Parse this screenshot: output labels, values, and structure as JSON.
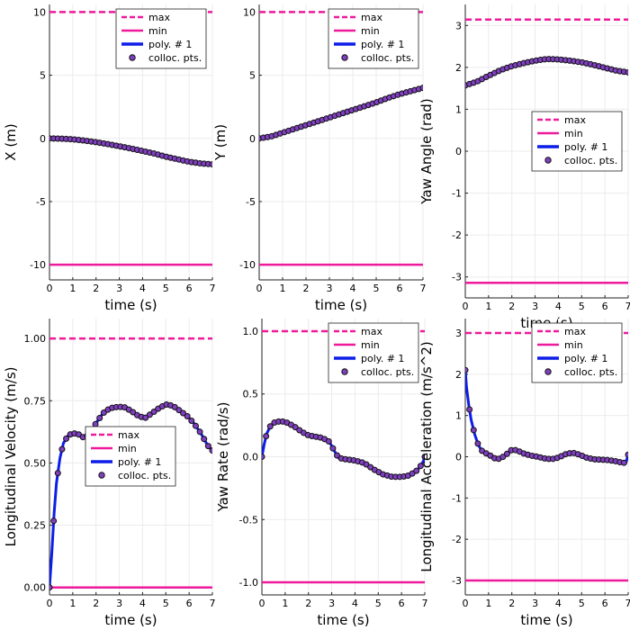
{
  "legend": {
    "max_label": "max",
    "min_label": "min",
    "poly_label": "poly. # 1",
    "pts_label": "colloc. pts."
  },
  "colors": {
    "bound": "#ee1a9b",
    "poly": "#0d1ee8",
    "pts_fill": "#7f3fbf",
    "pts_edge": "#111111",
    "grid": "#ebebeb"
  },
  "chart_data": [
    {
      "type": "line",
      "xlabel": "time (s)",
      "ylabel": "X (m)",
      "xlim": [
        0,
        7
      ],
      "ylim": [
        -11.2,
        10.6
      ],
      "xticks": [
        0,
        1,
        2,
        3,
        4,
        5,
        6,
        7
      ],
      "yticks": [
        10,
        5,
        0,
        -5,
        -10
      ],
      "ytick_labels": [
        "10",
        "5",
        "0",
        "-5",
        "-10"
      ],
      "max": 10,
      "min": -10,
      "legend_loc": "top-right",
      "x": [
        0,
        0.5,
        1,
        1.5,
        2,
        2.5,
        3,
        3.5,
        4,
        4.5,
        5,
        5.5,
        6,
        6.5,
        7
      ],
      "y": [
        0,
        -0.02,
        -0.07,
        -0.17,
        -0.3,
        -0.45,
        -0.62,
        -0.8,
        -1.0,
        -1.2,
        -1.45,
        -1.65,
        -1.85,
        -1.98,
        -2.05
      ]
    },
    {
      "type": "line",
      "xlabel": "time (s)",
      "ylabel": "Y (m)",
      "xlim": [
        0,
        7
      ],
      "ylim": [
        -11.2,
        10.6
      ],
      "xticks": [
        0,
        1,
        2,
        3,
        4,
        5,
        6,
        7
      ],
      "yticks": [
        10,
        5,
        0,
        -5,
        -10
      ],
      "ytick_labels": [
        "10",
        "5",
        "0",
        "-5",
        "-10"
      ],
      "max": 10,
      "min": -10,
      "legend_loc": "top-right",
      "x": [
        0,
        0.5,
        1,
        1.5,
        2,
        2.5,
        3,
        3.5,
        4,
        4.5,
        5,
        5.5,
        6,
        6.5,
        7
      ],
      "y": [
        0,
        0.15,
        0.45,
        0.75,
        1.05,
        1.35,
        1.65,
        1.95,
        2.25,
        2.55,
        2.85,
        3.2,
        3.5,
        3.75,
        4.0
      ]
    },
    {
      "type": "line",
      "xlabel": "time (s)",
      "ylabel": "Yaw Angle (rad)",
      "xlim": [
        0,
        7
      ],
      "ylim": [
        -3.5,
        3.5
      ],
      "xticks": [
        0,
        1,
        2,
        3,
        4,
        5,
        6,
        7
      ],
      "yticks": [
        3,
        2,
        1,
        0,
        -1,
        -2,
        -3
      ],
      "ytick_labels": [
        "3",
        "2",
        "1",
        "0",
        "-1",
        "-2",
        "-3"
      ],
      "max": 3.14,
      "min": -3.14,
      "legend_loc": "center-right",
      "x": [
        0,
        0.5,
        1,
        1.5,
        2,
        2.5,
        3,
        3.5,
        4,
        4.5,
        5,
        5.5,
        6,
        6.5,
        7
      ],
      "y": [
        1.57,
        1.66,
        1.8,
        1.93,
        2.03,
        2.1,
        2.16,
        2.2,
        2.19,
        2.16,
        2.12,
        2.06,
        1.99,
        1.92,
        1.88
      ]
    },
    {
      "type": "line",
      "xlabel": "time (s)",
      "ylabel": "Longitudinal Velocity (m/s)",
      "xlim": [
        0,
        7
      ],
      "ylim": [
        -0.03,
        1.08
      ],
      "xticks": [
        0,
        1,
        2,
        3,
        4,
        5,
        6,
        7
      ],
      "yticks": [
        1,
        0.75,
        0.5,
        0.25,
        0
      ],
      "ytick_labels": [
        "1.00",
        "0.75",
        "0.50",
        "0.25",
        "0.00"
      ],
      "max": 1.0,
      "min": 0.0,
      "legend_loc": "center-right",
      "x": [
        0,
        0.1,
        0.2,
        0.3,
        0.45,
        0.6,
        0.8,
        1.0,
        1.25,
        1.5,
        1.75,
        2.0,
        2.3,
        2.6,
        2.9,
        3.2,
        3.5,
        3.8,
        4.1,
        4.4,
        4.7,
        5.0,
        5.3,
        5.6,
        5.9,
        6.2,
        6.5,
        6.8,
        7.0
      ],
      "y": [
        0,
        0.14,
        0.3,
        0.42,
        0.52,
        0.58,
        0.61,
        0.62,
        0.615,
        0.6,
        0.62,
        0.66,
        0.7,
        0.72,
        0.725,
        0.725,
        0.71,
        0.69,
        0.68,
        0.7,
        0.72,
        0.735,
        0.73,
        0.71,
        0.69,
        0.66,
        0.62,
        0.57,
        0.55
      ]
    },
    {
      "type": "line",
      "xlabel": "time (s)",
      "ylabel": "Yaw Rate (rad/s)",
      "xlim": [
        0,
        7
      ],
      "ylim": [
        -1.1,
        1.1
      ],
      "xticks": [
        0,
        1,
        2,
        3,
        4,
        5,
        6,
        7
      ],
      "yticks": [
        1,
        0.5,
        0,
        -0.5,
        -1
      ],
      "ytick_labels": [
        "1.0",
        "0.5",
        "0.0",
        "-0.5",
        "-1.0"
      ],
      "max": 1.0,
      "min": -1.0,
      "legend_loc": "top-right",
      "x": [
        0,
        0.1,
        0.2,
        0.35,
        0.5,
        0.7,
        0.9,
        1.1,
        1.4,
        1.7,
        2.0,
        2.3,
        2.6,
        2.9,
        3.1,
        3.3,
        3.6,
        4.0,
        4.4,
        4.8,
        5.2,
        5.6,
        6.0,
        6.3,
        6.6,
        6.8,
        6.95,
        7.0
      ],
      "y": [
        0,
        0.1,
        0.18,
        0.24,
        0.27,
        0.28,
        0.28,
        0.27,
        0.24,
        0.2,
        0.17,
        0.16,
        0.15,
        0.12,
        0.05,
        -0.01,
        -0.02,
        -0.03,
        -0.05,
        -0.1,
        -0.14,
        -0.16,
        -0.16,
        -0.15,
        -0.12,
        -0.08,
        -0.03,
        0
      ]
    },
    {
      "type": "line",
      "xlabel": "time (s)",
      "ylabel": "Longitudinal Acceleration (m/s^2)",
      "xlim": [
        0,
        7
      ],
      "ylim": [
        -3.35,
        3.35
      ],
      "xticks": [
        0,
        1,
        2,
        3,
        4,
        5,
        6,
        7
      ],
      "yticks": [
        3,
        2,
        1,
        0,
        -1,
        -2,
        -3
      ],
      "ytick_labels": [
        "3",
        "2",
        "1",
        "0",
        "-1",
        "-2",
        "-3"
      ],
      "max": 3.0,
      "min": -3.0,
      "legend_loc": "top-right",
      "x": [
        0,
        0.05,
        0.15,
        0.25,
        0.4,
        0.55,
        0.7,
        0.9,
        1.1,
        1.3,
        1.5,
        1.75,
        2.0,
        2.2,
        2.5,
        2.8,
        3.1,
        3.4,
        3.7,
        4.0,
        4.3,
        4.6,
        4.9,
        5.2,
        5.5,
        5.8,
        6.1,
        6.4,
        6.7,
        6.9,
        7.0
      ],
      "y": [
        2.1,
        1.7,
        1.25,
        0.9,
        0.55,
        0.3,
        0.15,
        0.08,
        0.02,
        -0.05,
        -0.05,
        0.05,
        0.17,
        0.16,
        0.08,
        0.03,
        0.0,
        -0.04,
        -0.06,
        -0.02,
        0.06,
        0.1,
        0.05,
        -0.02,
        -0.06,
        -0.07,
        -0.08,
        -0.1,
        -0.14,
        -0.15,
        0.05
      ]
    }
  ]
}
